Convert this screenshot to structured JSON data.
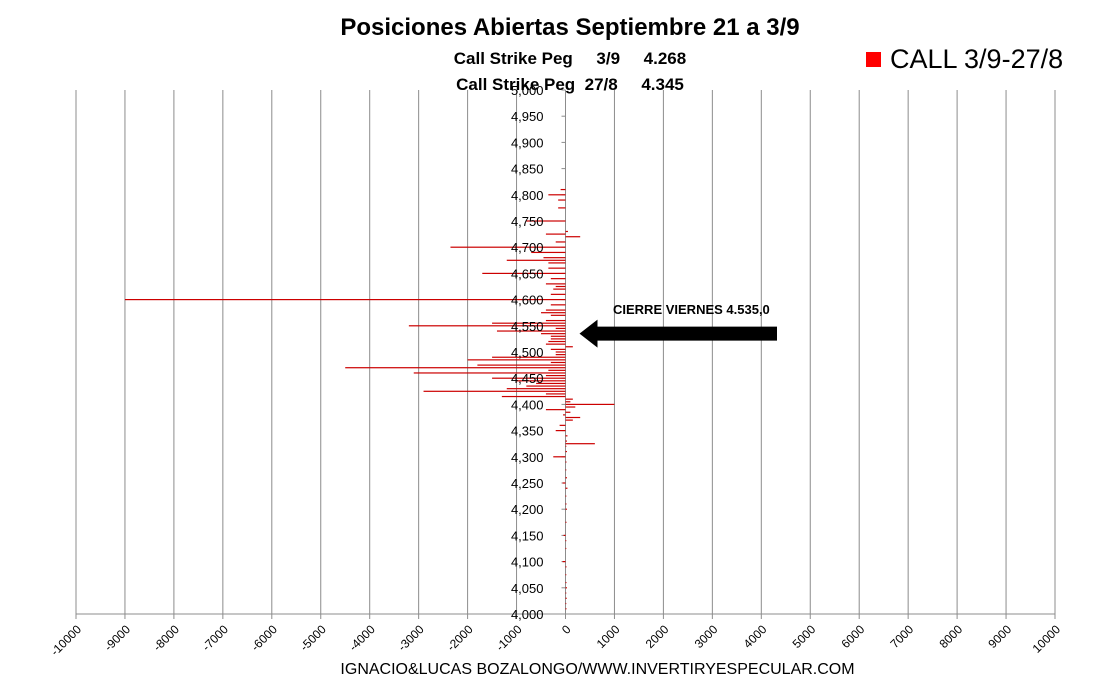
{
  "header": {
    "title": "Posiciones Abiertas Septiembre 21 a 3/9",
    "subtitle1": "Call Strike Peg     3/9     4.268",
    "subtitle2": "Call Strike Peg  27/8     4.345"
  },
  "legend": {
    "label": "CALL 3/9-27/8",
    "color": "#ff0000"
  },
  "annotation": {
    "text": "CIERRE VIERNES 4.535,0",
    "price": 4535
  },
  "footer": {
    "text": "IGNACIO&LUCAS BOZALONGO/WWW.INVERTIRYESPECULAR.COM"
  },
  "chart_data": {
    "type": "bar",
    "orientation": "horizontal",
    "title": "Posiciones Abiertas Septiembre 21 a 3/9",
    "xlim": [
      -10000,
      10000
    ],
    "x_ticks": [
      -10000,
      -9000,
      -8000,
      -7000,
      -6000,
      -5000,
      -4000,
      -3000,
      -2000,
      -1000,
      0,
      1000,
      2000,
      3000,
      4000,
      5000,
      6000,
      7000,
      8000,
      9000,
      10000
    ],
    "ylim": [
      4000,
      5000
    ],
    "y_ticks": [
      4000,
      4050,
      4100,
      4150,
      4200,
      4250,
      4300,
      4350,
      4400,
      4450,
      4500,
      4550,
      4600,
      4650,
      4700,
      4750,
      4800,
      4850,
      4900,
      4950,
      5000
    ],
    "y_tick_labels": [
      "4,000",
      "4,050",
      "4,100",
      "4,150",
      "4,200",
      "4,250",
      "4,300",
      "4,350",
      "4,400",
      "4,450",
      "4,500",
      "4,550",
      "4,600",
      "4,650",
      "4,700",
      "4,750",
      "4,800",
      "4,850",
      "4,900",
      "4,950",
      "5,000"
    ],
    "grid": "vertical",
    "legend_position": "top-right",
    "series": [
      {
        "name": "CALL 3/9-27/8",
        "color": "#cc0000",
        "strikes": [
          4010,
          4020,
          4030,
          4040,
          4050,
          4060,
          4075,
          4090,
          4100,
          4125,
          4140,
          4150,
          4175,
          4200,
          4210,
          4225,
          4240,
          4250,
          4260,
          4275,
          4290,
          4300,
          4310,
          4320,
          4325,
          4330,
          4340,
          4350,
          4360,
          4370,
          4375,
          4380,
          4385,
          4390,
          4395,
          4400,
          4405,
          4410,
          4415,
          4420,
          4425,
          4430,
          4435,
          4440,
          4445,
          4450,
          4455,
          4460,
          4465,
          4470,
          4475,
          4480,
          4485,
          4490,
          4495,
          4500,
          4505,
          4510,
          4515,
          4520,
          4525,
          4530,
          4535,
          4540,
          4545,
          4550,
          4555,
          4560,
          4570,
          4575,
          4580,
          4590,
          4600,
          4610,
          4620,
          4625,
          4630,
          4640,
          4650,
          4660,
          4670,
          4675,
          4680,
          4690,
          4700,
          4710,
          4720,
          4725,
          4730,
          4750,
          4775,
          4790,
          4800,
          4810
        ],
        "values": [
          20,
          15,
          25,
          10,
          30,
          20,
          15,
          20,
          -60,
          10,
          15,
          -40,
          20,
          30,
          20,
          10,
          40,
          -60,
          30,
          15,
          20,
          -250,
          30,
          15,
          600,
          30,
          40,
          -200,
          -120,
          150,
          300,
          -50,
          100,
          -400,
          200,
          1000,
          100,
          150,
          -1300,
          -400,
          -2900,
          -1200,
          -800,
          -600,
          -1000,
          -1500,
          -400,
          -3100,
          -350,
          -4500,
          -1800,
          -300,
          -2000,
          -1500,
          -200,
          -200,
          -300,
          150,
          -400,
          -350,
          -300,
          -300,
          -500,
          -1400,
          -200,
          -3200,
          -1500,
          -400,
          -300,
          -500,
          -400,
          -300,
          -9000,
          -300,
          -250,
          -200,
          -400,
          -300,
          -1700,
          -350,
          -350,
          -1200,
          -450,
          -700,
          -2350,
          -200,
          300,
          -400,
          50,
          -800,
          -150,
          -150,
          -350,
          -100
        ]
      }
    ]
  }
}
